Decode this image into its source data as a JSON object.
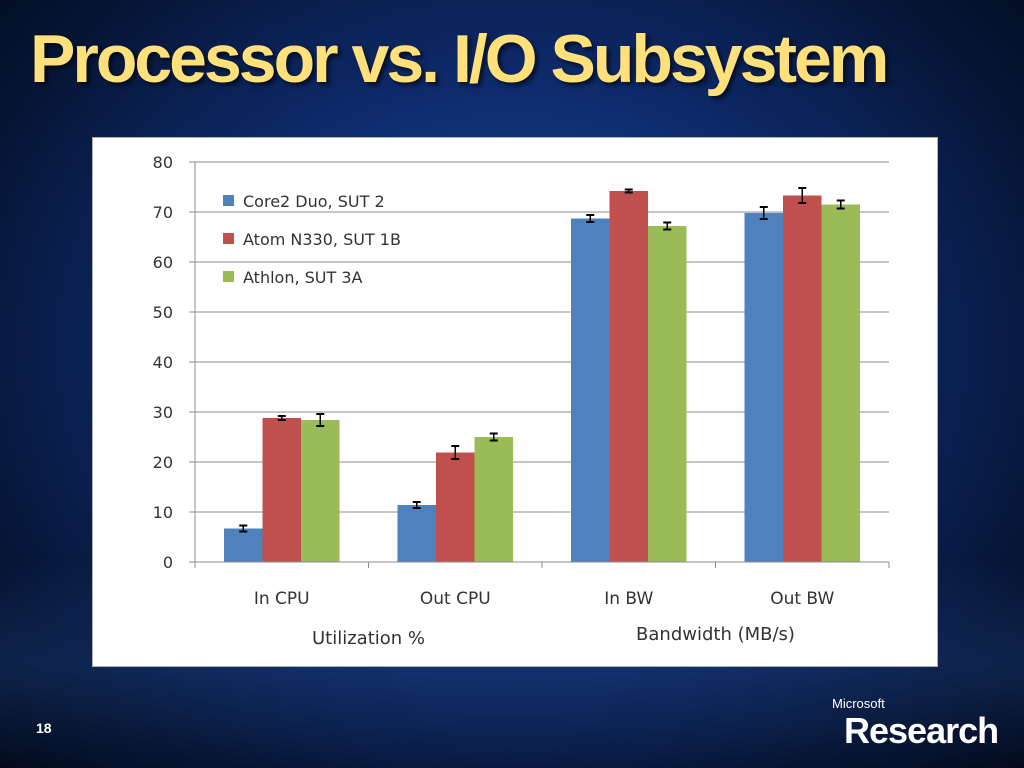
{
  "slide": {
    "title": "Processor  vs. I/O Subsystem",
    "number": "18",
    "logo_top": "Microsoft",
    "logo_main": "Research"
  },
  "colors": {
    "core2": "#4f81bd",
    "atom": "#c0504d",
    "athlon": "#9bbb59"
  },
  "chart_data": {
    "type": "bar",
    "categories": [
      "In CPU",
      "Out CPU",
      "In BW",
      "Out BW"
    ],
    "group_labels": [
      "Utilization %",
      "Bandwidth (MB/s)"
    ],
    "series": [
      {
        "name": "Core2 Duo, SUT 2",
        "values": [
          6.7,
          11.4,
          68.7,
          69.8
        ],
        "errors": [
          0.6,
          0.6,
          0.7,
          1.2
        ]
      },
      {
        "name": "Atom N330, SUT 1B",
        "values": [
          28.8,
          21.9,
          74.2,
          73.3
        ],
        "errors": [
          0.4,
          1.3,
          0.3,
          1.5
        ]
      },
      {
        "name": "Athlon, SUT 3A",
        "values": [
          28.4,
          25.0,
          67.2,
          71.5
        ],
        "errors": [
          1.2,
          0.7,
          0.7,
          0.8
        ]
      }
    ],
    "ylim": [
      0,
      80
    ],
    "yticks": [
      0,
      10,
      20,
      30,
      40,
      50,
      60,
      70,
      80
    ],
    "grid": true,
    "legend": "top-left"
  }
}
